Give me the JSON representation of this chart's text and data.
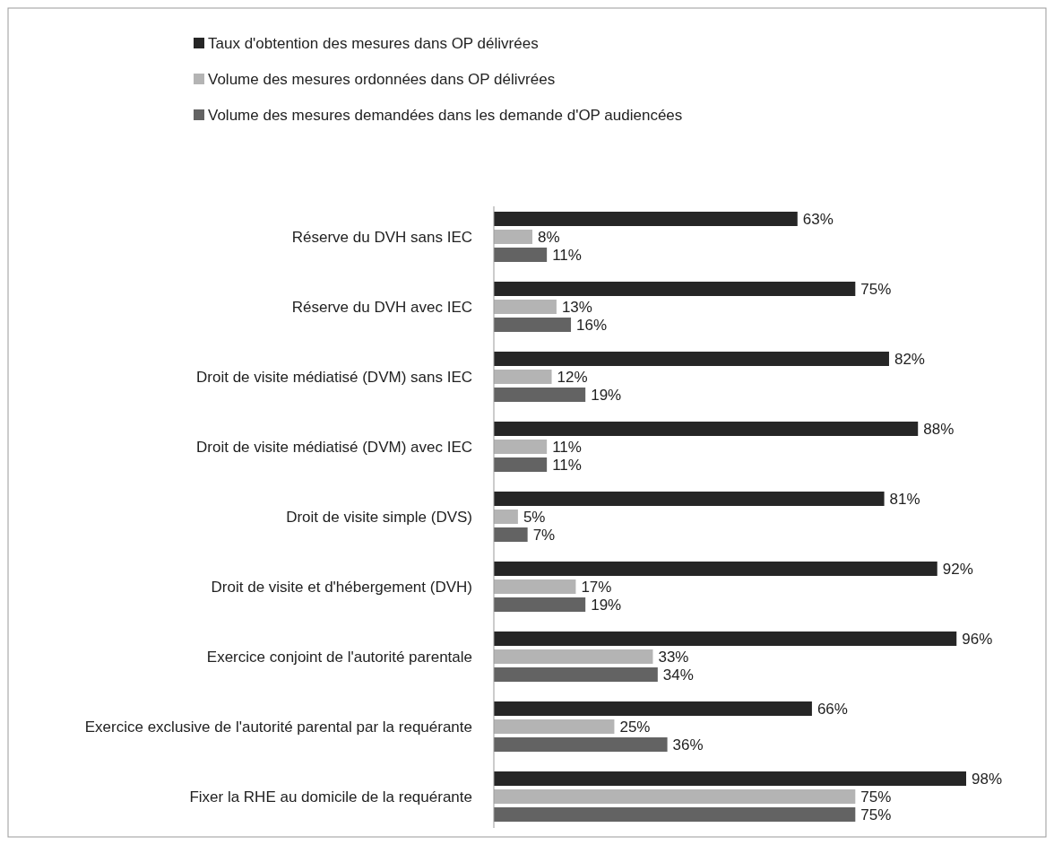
{
  "chart_data": {
    "type": "bar",
    "orientation": "horizontal",
    "legend": "top",
    "tick_labels": "y",
    "categories": [
      "Réserve du DVH sans IEC",
      "Réserve du DVH avec IEC",
      "Droit de visite médiatisé (DVM) sans IEC",
      "Droit de visite médiatisé (DVM) avec IEC",
      "Droit de visite simple (DVS)",
      "Droit de visite et d'hébergement (DVH)",
      "Exercice conjoint de l'autorité parentale",
      "Exercice exclusive de l'autorité parental par la requérante",
      "Fixer la RHE au domicile de la requérante"
    ],
    "series": [
      {
        "name": "Taux d'obtention des mesures dans OP délivrées",
        "color": "#262626",
        "values": [
          63,
          75,
          82,
          88,
          81,
          92,
          96,
          66,
          98
        ],
        "value_labels": [
          "63%",
          "75%",
          "82%",
          "88%",
          "81%",
          "92%",
          "96%",
          "66%",
          "98%"
        ]
      },
      {
        "name": "Volume des mesures ordonnées dans OP délivrées",
        "color": "#b4b4b4",
        "values": [
          8,
          13,
          12,
          11,
          5,
          17,
          33,
          25,
          75
        ],
        "value_labels": [
          "8%",
          "13%",
          "12%",
          "11%",
          "5%",
          "17%",
          "33%",
          "25%",
          "75%"
        ]
      },
      {
        "name": "Volume des mesures demandées dans les demande d'OP audiencées",
        "color": "#636363",
        "values": [
          11,
          16,
          19,
          11,
          7,
          19,
          34,
          36,
          75
        ],
        "value_labels": [
          "11%",
          "16%",
          "19%",
          "11%",
          "7%",
          "19%",
          "34%",
          "36%",
          "75%"
        ]
      }
    ]
  }
}
